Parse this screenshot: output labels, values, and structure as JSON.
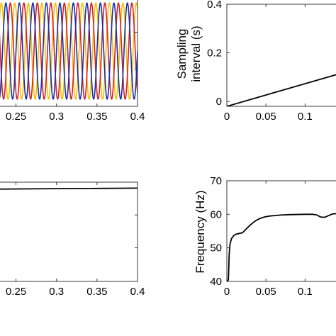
{
  "chart_data": [
    {
      "id": "top-left",
      "type": "line",
      "xlabel": "",
      "ylabel": "",
      "xlim": [
        0.225,
        0.4
      ],
      "x_ticks": [
        "0.25",
        "0.3",
        "0.35",
        "0.4"
      ],
      "x_tick_values": [
        0.25,
        0.3,
        0.35,
        0.4
      ],
      "y_ticks": [],
      "signal_frequency_hz": 60,
      "series": [
        {
          "color": "#f2c200",
          "phase_deg": 120
        },
        {
          "color": "#d62027",
          "phase_deg": 240
        },
        {
          "color": "#1a2fa8",
          "phase_deg": 0
        }
      ]
    },
    {
      "id": "top-right",
      "type": "line",
      "xlabel": "",
      "ylabel_lines": [
        "Sampling",
        "interval (s)"
      ],
      "xlim": [
        0,
        0.145
      ],
      "ylim": [
        -0.02,
        0.4
      ],
      "x_ticks": [
        "0",
        "0.05",
        "0.1"
      ],
      "x_tick_values": [
        0,
        0.05,
        0.1
      ],
      "y_ticks": [
        "0",
        "0.2",
        "0.4"
      ],
      "y_tick_values": [
        0,
        0.2,
        0.4
      ],
      "series": [
        {
          "color": "#000000",
          "x": [
            0,
            0.145
          ],
          "y": [
            -0.02,
            0.115
          ]
        }
      ]
    },
    {
      "id": "bottom-left",
      "type": "line",
      "xlabel": "",
      "ylabel": "",
      "xlim": [
        0.225,
        0.4
      ],
      "ylim": [
        0,
        1
      ],
      "x_ticks": [
        "0.25",
        "0.3",
        "0.35",
        "0.4"
      ],
      "x_tick_values": [
        0.25,
        0.3,
        0.35,
        0.4
      ],
      "y_ticks": [],
      "series": [
        {
          "color": "#000000",
          "x": [
            0.225,
            0.3,
            0.35,
            0.4
          ],
          "y": [
            0.93,
            0.935,
            0.937,
            0.94
          ]
        }
      ]
    },
    {
      "id": "bottom-right",
      "type": "line",
      "xlabel": "",
      "ylabel": "Frequency (Hz)",
      "xlim": [
        0,
        0.145
      ],
      "ylim": [
        40,
        70
      ],
      "x_ticks": [
        "0",
        "0.05",
        "0.1"
      ],
      "x_tick_values": [
        0,
        0.05,
        0.1
      ],
      "y_ticks": [
        "40",
        "50",
        "60",
        "70"
      ],
      "y_tick_values": [
        40,
        50,
        60,
        70
      ],
      "series": [
        {
          "color": "#000000",
          "x": [
            0,
            0.002,
            0.003,
            0.004,
            0.006,
            0.009,
            0.012,
            0.016,
            0.02,
            0.025,
            0.03,
            0.035,
            0.04,
            0.045,
            0.05,
            0.055,
            0.06,
            0.07,
            0.08,
            0.09,
            0.1,
            0.11,
            0.115,
            0.12,
            0.125,
            0.13,
            0.135,
            0.14,
            0.145
          ],
          "y": [
            40,
            40.5,
            48,
            51,
            52.8,
            53.7,
            54.1,
            54.3,
            54.5,
            55.7,
            56.8,
            57.8,
            58.5,
            59.0,
            59.3,
            59.5,
            59.6,
            59.8,
            59.9,
            59.95,
            60.0,
            60.0,
            59.8,
            59.2,
            59.1,
            59.6,
            60.1,
            60.2,
            60.3
          ]
        }
      ]
    }
  ]
}
